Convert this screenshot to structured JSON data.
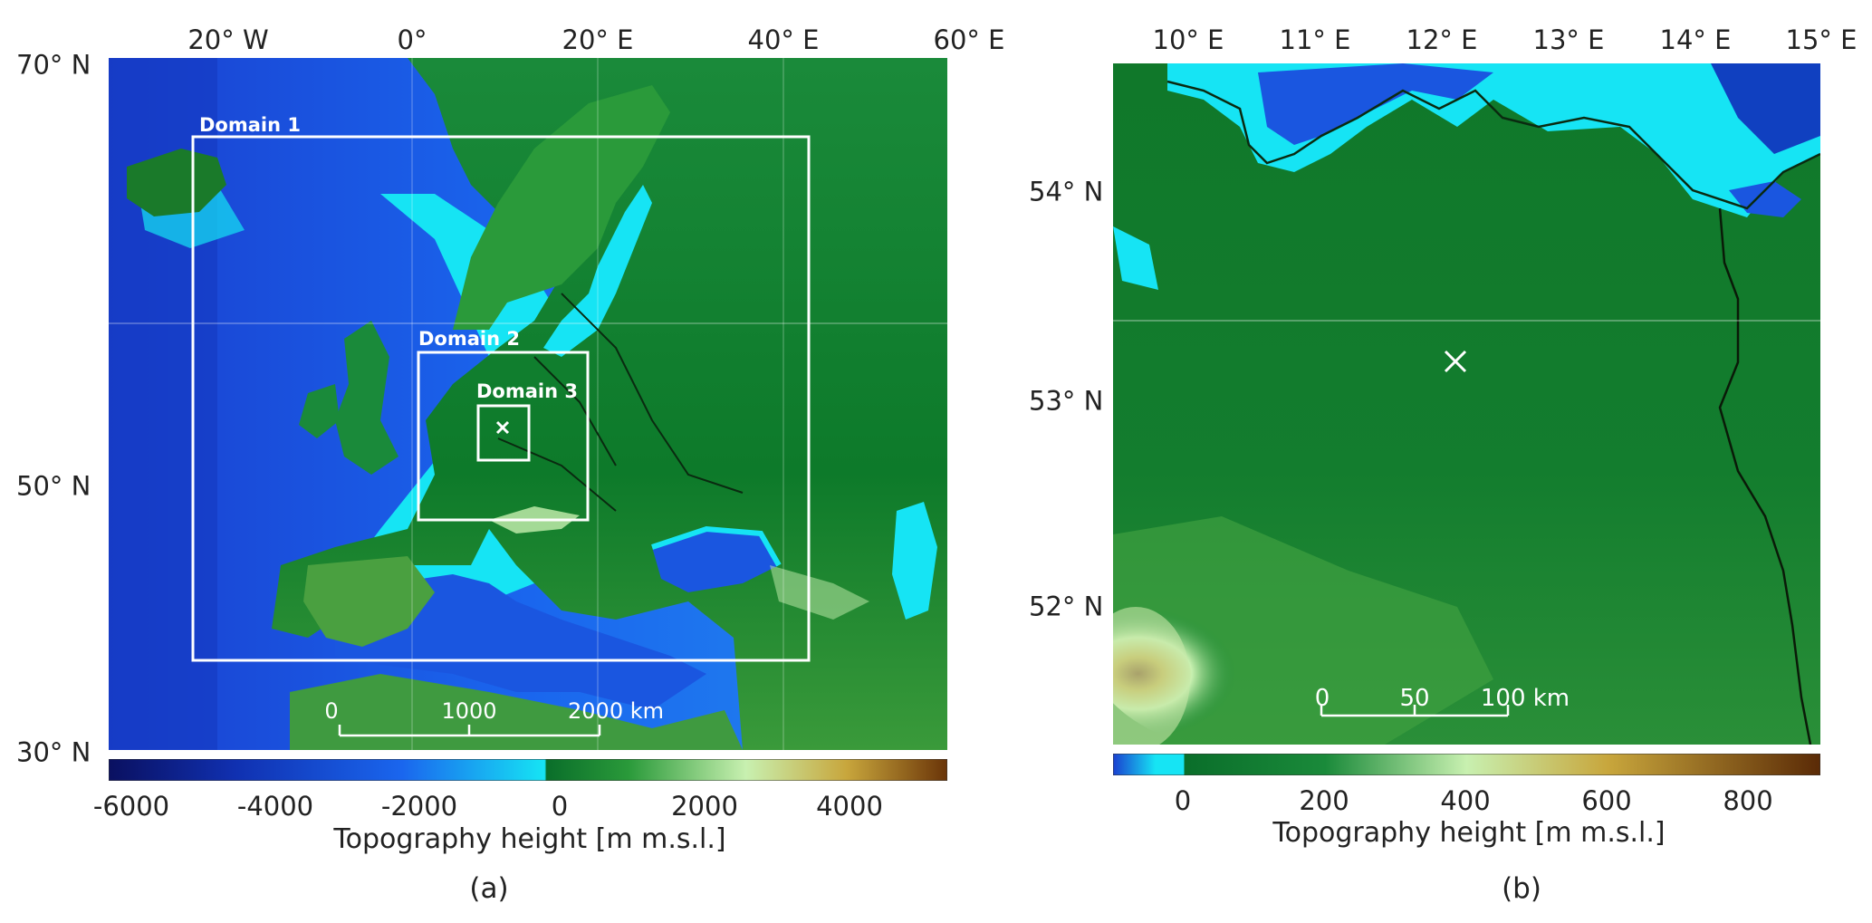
{
  "panels": {
    "a": {
      "letter": "(a)",
      "top_ticks": [
        "20° W",
        "0°",
        "20° E",
        "40° E",
        "60° E"
      ],
      "left_ticks": [
        "70° N",
        "50° N",
        "30° N"
      ],
      "domains": [
        "Domain 1",
        "Domain 2",
        "Domain 3"
      ],
      "scalebar": {
        "labels": [
          "0",
          "1000",
          "2000 km"
        ]
      },
      "colorbar": {
        "range": [
          -6000,
          5500
        ],
        "ticks": [
          "-6000",
          "-4000",
          "-2000",
          "0",
          "2000",
          "4000"
        ],
        "label": "Topography height [m m.s.l.]"
      },
      "marker": "×"
    },
    "b": {
      "letter": "(b)",
      "top_ticks": [
        "10° E",
        "11° E",
        "12° E",
        "13° E",
        "14° E",
        "15° E"
      ],
      "left_ticks": [
        "54° N",
        "53° N",
        "52° N"
      ],
      "scalebar": {
        "labels": [
          "0",
          "50",
          "100 km"
        ]
      },
      "colorbar": {
        "range": [
          -100,
          900
        ],
        "ticks": [
          "0",
          "200",
          "400",
          "600",
          "800"
        ],
        "label": "Topography height [m m.s.l.]"
      },
      "marker": "×"
    }
  },
  "colors": {
    "deep_ocean": "#0a1a6e",
    "ocean": "#1a56e0",
    "shallow": "#16e4f4",
    "lowland": "#0d7a2a",
    "upland": "#c8f0b0",
    "high": "#c8a63c",
    "peak": "#6a3408"
  }
}
